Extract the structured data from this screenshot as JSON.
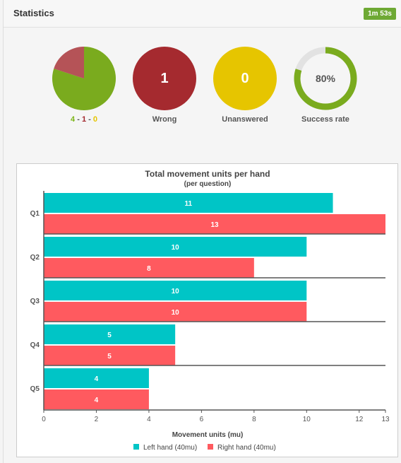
{
  "header": {
    "title": "Statistics",
    "timer": "1m 53s"
  },
  "stats": {
    "score": {
      "correct": "4",
      "wrong": "1",
      "unanswered": "0",
      "sep": " - ",
      "pie_values": [
        4,
        1,
        0
      ]
    },
    "wrong": {
      "value": "1",
      "label": "Wrong"
    },
    "unanswered": {
      "value": "0",
      "label": "Unanswered"
    },
    "success": {
      "value": "80%",
      "label": "Success rate",
      "fraction": 0.8
    }
  },
  "colors": {
    "green": "#7aab1e",
    "red": "#a52a2f",
    "yellow": "#e6c500",
    "teal": "#00c5c6",
    "coral": "#ff5a5f",
    "track": "#e2e2e2"
  },
  "chart_data": {
    "type": "bar",
    "orientation": "horizontal",
    "title": "Total movement units per hand",
    "subtitle": "(per question)",
    "xlabel": "Movement units (mu)",
    "categories": [
      "Q1",
      "Q2",
      "Q3",
      "Q4",
      "Q5"
    ],
    "series": [
      {
        "name": "Left hand (40mu)",
        "color": "#00c5c6",
        "values": [
          11,
          10,
          10,
          5,
          4
        ]
      },
      {
        "name": "Right hand (40mu)",
        "color": "#ff5a5f",
        "values": [
          13,
          8,
          10,
          5,
          4
        ]
      }
    ],
    "xticks": [
      0,
      2,
      4,
      6,
      8,
      10,
      12,
      13
    ],
    "xlim": [
      0,
      13
    ],
    "legend": "bottom"
  }
}
